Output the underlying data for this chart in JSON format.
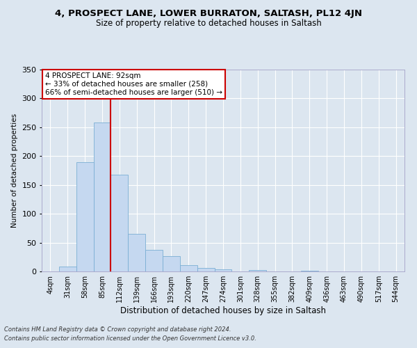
{
  "title1": "4, PROSPECT LANE, LOWER BURRATON, SALTASH, PL12 4JN",
  "title2": "Size of property relative to detached houses in Saltash",
  "xlabel": "Distribution of detached houses by size in Saltash",
  "ylabel": "Number of detached properties",
  "footnote1": "Contains HM Land Registry data © Crown copyright and database right 2024.",
  "footnote2": "Contains public sector information licensed under the Open Government Licence v3.0.",
  "bin_labels": [
    "4sqm",
    "31sqm",
    "58sqm",
    "85sqm",
    "112sqm",
    "139sqm",
    "166sqm",
    "193sqm",
    "220sqm",
    "247sqm",
    "274sqm",
    "301sqm",
    "328sqm",
    "355sqm",
    "382sqm",
    "409sqm",
    "436sqm",
    "463sqm",
    "490sqm",
    "517sqm",
    "544sqm"
  ],
  "bar_heights": [
    0,
    8,
    190,
    258,
    168,
    65,
    37,
    27,
    11,
    6,
    4,
    0,
    3,
    0,
    0,
    1,
    0,
    0,
    0,
    0,
    0
  ],
  "bar_color": "#c5d8f0",
  "bar_edge_color": "#7aafd4",
  "vline_x": 3.5,
  "vline_color": "#cc0000",
  "annotation_title": "4 PROSPECT LANE: 92sqm",
  "annotation_line1": "← 33% of detached houses are smaller (258)",
  "annotation_line2": "66% of semi-detached houses are larger (510) →",
  "annotation_box_facecolor": "#ffffff",
  "annotation_box_edgecolor": "#cc0000",
  "ylim": [
    0,
    350
  ],
  "yticks": [
    0,
    50,
    100,
    150,
    200,
    250,
    300,
    350
  ],
  "background_color": "#dce6f0",
  "plot_bg_color": "#dce6f0",
  "grid_color": "#ffffff",
  "title1_fontsize": 9.5,
  "title2_fontsize": 8.5,
  "xlabel_fontsize": 8.5,
  "ylabel_fontsize": 7.5,
  "tick_fontsize": 7.0,
  "ytick_fontsize": 8.0,
  "annotation_fontsize": 7.5,
  "footnote_fontsize": 6.0
}
